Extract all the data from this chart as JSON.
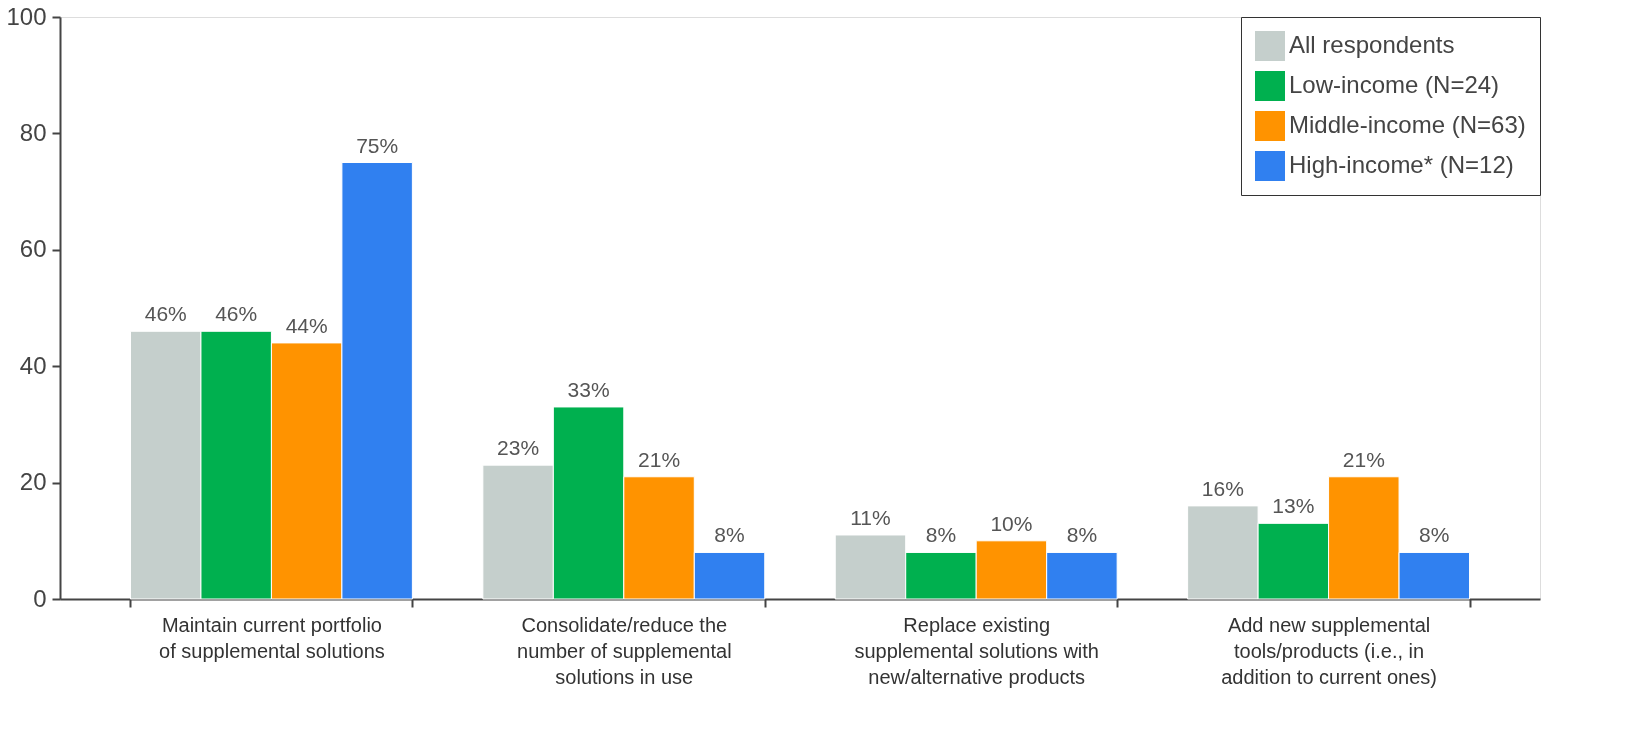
{
  "chart_data": {
    "type": "bar",
    "categories": [
      "Maintain current portfolio of supplemental solutions",
      "Consolidate/reduce the number of supplemental solutions in use",
      "Replace existing supplemental solutions with new/alternative products",
      "Add new supplemental tools/products (i.e., in addition to current ones)"
    ],
    "series": [
      {
        "name": "All respondents",
        "color": "#c5cfcc",
        "values": [
          46,
          23,
          11,
          16
        ],
        "value_labels": [
          "46%",
          "23%",
          "11%",
          "16%"
        ]
      },
      {
        "name": "Low-income (N=24)",
        "color": "#00b04f",
        "values": [
          46,
          33,
          8,
          13
        ],
        "value_labels": [
          "46%",
          "33%",
          "8%",
          "13%"
        ]
      },
      {
        "name": "Middle-income (N=63)",
        "color": "#ff9300",
        "values": [
          44,
          21,
          10,
          21
        ],
        "value_labels": [
          "44%",
          "21%",
          "10%",
          "21%"
        ]
      },
      {
        "name": "High-income* (N=12)",
        "color": "#3080f0",
        "values": [
          75,
          8,
          8,
          8
        ],
        "value_labels": [
          "75%",
          "8%",
          "8%",
          "8%"
        ]
      }
    ],
    "ylim": [
      0,
      100
    ],
    "yticks": [
      0,
      20,
      40,
      60,
      80,
      100
    ],
    "grid": false,
    "legend": "top right"
  }
}
